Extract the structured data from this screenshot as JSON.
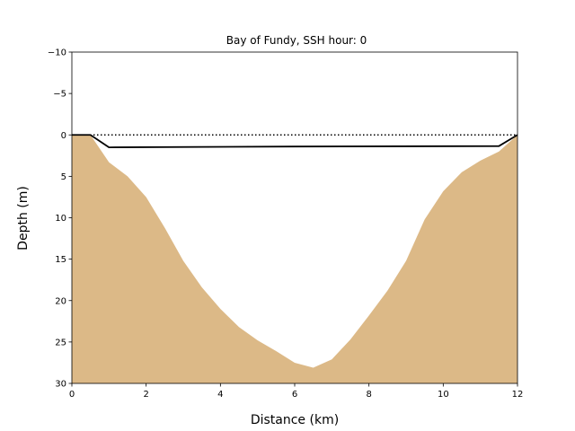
{
  "chart_data": {
    "type": "area",
    "title": "Bay of Fundy, SSH hour: 0",
    "xlabel": "Distance (km)",
    "ylabel": "Depth (m)",
    "xlim": [
      0,
      12
    ],
    "ylim": [
      30,
      -10
    ],
    "y_inverted": true,
    "grid": false,
    "xticks": [
      "0",
      "2",
      "4",
      "6",
      "8",
      "10",
      "12"
    ],
    "yticks": [
      "−10",
      "−5",
      "0",
      "5",
      "10",
      "15",
      "20",
      "25",
      "30"
    ],
    "xtick_values": [
      0,
      2,
      4,
      6,
      8,
      10,
      12
    ],
    "ytick_values": [
      -10,
      -5,
      0,
      5,
      10,
      15,
      20,
      25,
      30
    ],
    "colors": {
      "bathymetry_fill": "#dcb987",
      "line": "#000000"
    },
    "series": [
      {
        "kind": "filled-area",
        "x": [
          0,
          0.5,
          1,
          1.5,
          2,
          2.5,
          3,
          3.5,
          4,
          4.5,
          5,
          5.5,
          6,
          6.5,
          7,
          7.5,
          8,
          8.5,
          9,
          9.5,
          10,
          10.5,
          11,
          11.5,
          12
        ],
        "y": [
          0,
          0,
          3.3,
          5,
          7.5,
          11.2,
          15.2,
          18.4,
          21.0,
          23.2,
          24.8,
          26.1,
          27.5,
          28.1,
          27.1,
          24.7,
          21.8,
          18.8,
          15.2,
          10.2,
          6.8,
          4.5,
          3.1,
          2.0,
          0
        ]
      },
      {
        "kind": "solid-line",
        "x": [
          0,
          0.5,
          1,
          6,
          11.5,
          12
        ],
        "y": [
          0,
          0,
          1.5,
          1.4,
          1.35,
          0
        ]
      },
      {
        "kind": "dotted-line",
        "x": [
          0,
          12
        ],
        "y": [
          0,
          0
        ]
      }
    ]
  }
}
